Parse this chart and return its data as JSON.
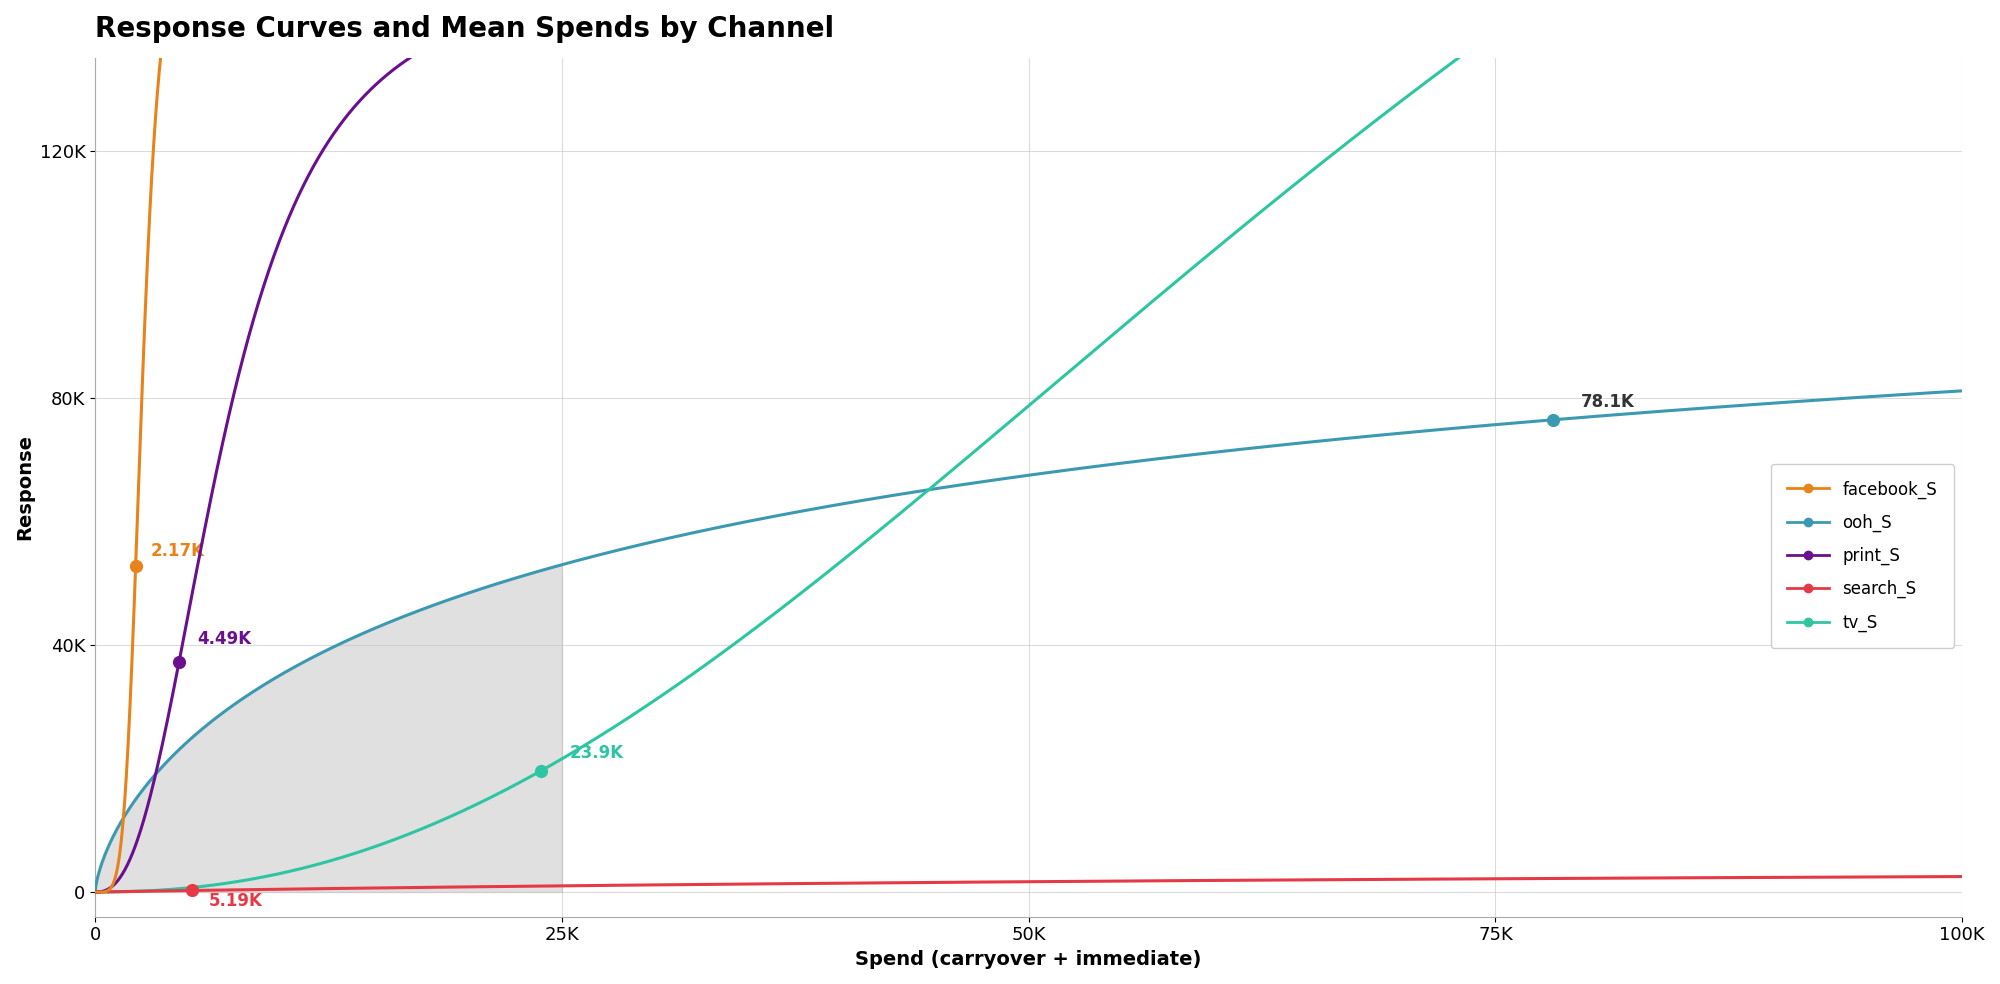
{
  "title": "Response Curves and Mean Spends by Channel",
  "xlabel": "Spend (carryover + immediate)",
  "ylabel": "Response",
  "background_color": "#ffffff",
  "plot_bg_color": "#ffffff",
  "grid_color": "#cccccc",
  "xlim": [
    0,
    100000
  ],
  "ylim": [
    -4000,
    135000
  ],
  "xticks": [
    0,
    25000,
    50000,
    75000,
    100000
  ],
  "xtick_labels": [
    "0",
    "25K",
    "50K",
    "75K",
    "100K"
  ],
  "yticks": [
    0,
    40000,
    80000,
    120000
  ],
  "ytick_labels": [
    "0",
    "40K",
    "80K",
    "120K"
  ],
  "channels": {
    "facebook_S": {
      "color": "#E8821A"
    },
    "ooh_S": {
      "color": "#3B9AB2"
    },
    "print_S": {
      "color": "#6A0F8E"
    },
    "search_S": {
      "color": "#E63946"
    },
    "tv_S": {
      "color": "#2DC5A2"
    }
  },
  "shade_xmax": 25000,
  "shade_color": "#c8c8c8",
  "shade_alpha": 0.55,
  "title_fontsize": 20,
  "label_fontsize": 14,
  "tick_fontsize": 13,
  "annotation_fontsize": 12,
  "fb_mean_x": 2170,
  "fb_mean_label": "2.17K",
  "pr_mean_x": 4490,
  "pr_mean_label": "4.49K",
  "se_mean_x": 5190,
  "se_mean_label": "5.19K",
  "tv_mean_x": 23900,
  "tv_mean_label": "23.9K",
  "ooh_mean_x": 78100,
  "ooh_mean_label": "78.1K"
}
